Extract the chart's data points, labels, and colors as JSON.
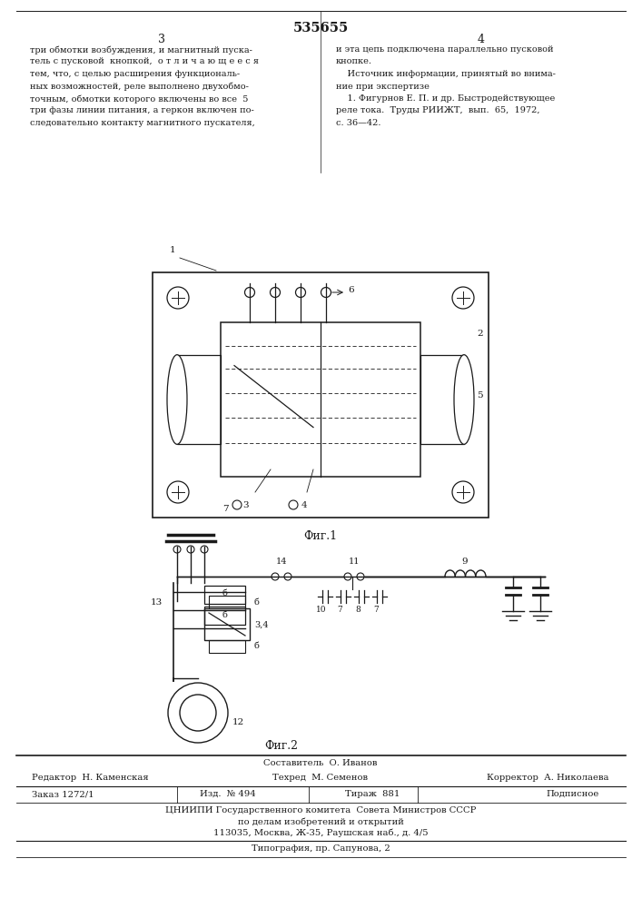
{
  "patent_number": "535655",
  "background_color": "#ffffff",
  "text_color": "#1a1a1a",
  "left_column_text": [
    "три обмотки возбуждения, и магнитный пуска-",
    "тель с пусковой  кнопкой,  о т л и ч а ю щ е е с я",
    "тем, что, с целью расширения функциональ-",
    "ных возможностей, реле выполнено двухобмо-",
    "точным, обмотки которого включены во все  5",
    "три фазы линии питания, а геркон включен по-",
    "следовательно контакту магнитного пускателя,"
  ],
  "right_column_text": [
    "и эта цепь подключена параллельно пусковой",
    "кнопке.",
    "    Источник информации, принятый во внима-",
    "ние при экспертизе",
    "    1. Фигурнов Е. П. и др. Быстродействующее",
    "реле тока.  Труды РИИЖТ,  вып.  65,  1972,",
    "с. 36—42."
  ],
  "fig1_label": "Фиг.1",
  "fig2_label": "Фиг.2",
  "footer_composer": "Составитель  О. Иванов",
  "footer_editor": "Редактор  Н. Каменская",
  "footer_techred": "Техред  М. Семенов",
  "footer_corrector": "Корректор  А. Николаева",
  "footer_order": "Заказ 1272/1",
  "footer_izd": "Изд.  № 494",
  "footer_tirazh": "Тираж  881",
  "footer_podpisnoe": "Подписное",
  "footer_inst1": "ЦНИИПИ Государственного комитета  Совета Министров СССР",
  "footer_inst2": "по делам изобретений и открытий",
  "footer_inst3": "113035, Москва, Ж-35, Раушская наб., д. 4/5",
  "footer_typogr": "Типография, пр. Сапунова, 2"
}
